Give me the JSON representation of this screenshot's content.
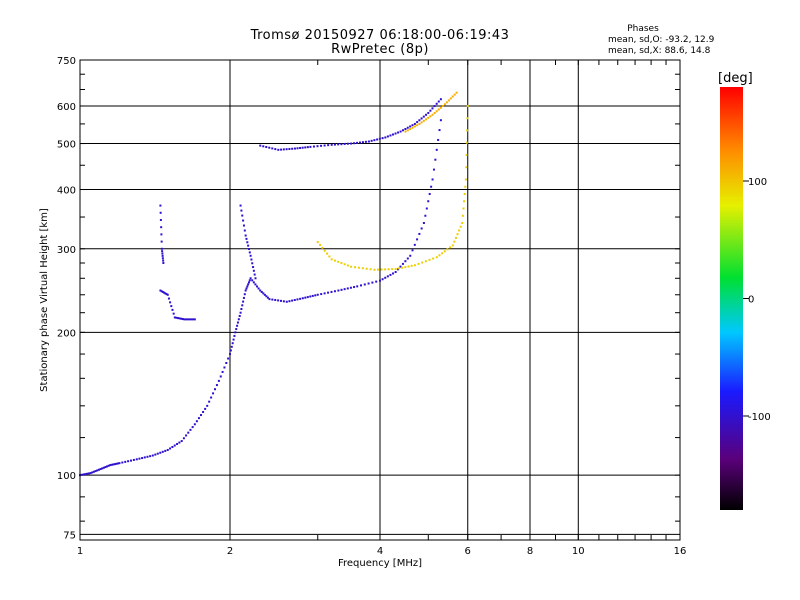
{
  "chart_data": {
    "type": "scatter",
    "title": "Tromsø 20150927 06:18:00-06:19:43",
    "subtitle": "RwPretec (8p)",
    "xlabel": "Frequency [MHz]",
    "ylabel": "Stationary phase Virtual Height [km]",
    "x_scale": "log",
    "y_scale": "log",
    "xlim": [
      1,
      16
    ],
    "ylim": [
      73,
      750
    ],
    "x_ticks": [
      1,
      2,
      4,
      6,
      8,
      10,
      16
    ],
    "y_ticks": [
      75,
      100,
      200,
      300,
      400,
      500,
      600,
      750
    ],
    "grid": true,
    "phase_box": {
      "heading": "Phases",
      "line_O": "mean, sd,O: -93.2, 12.9",
      "line_X": "mean, sd,X:  88.6, 14.8"
    },
    "colorbar": {
      "label": "[deg]",
      "range": [
        -180,
        180
      ],
      "ticks": [
        100,
        0,
        -100
      ],
      "colormap": "rainbow (black-purple-blue-cyan-green-yellow-orange-red)"
    },
    "series": [
      {
        "mode": "O",
        "phase_deg": -100,
        "x": [
          1.0,
          1.05,
          1.1,
          1.15,
          1.2,
          1.3,
          1.4,
          1.5,
          1.6,
          1.7,
          1.8,
          1.9,
          2.0,
          2.05,
          2.1,
          2.15,
          2.2,
          2.3,
          2.4,
          2.6,
          2.8,
          3.0,
          3.3,
          3.6,
          4.0,
          4.3,
          4.6,
          4.9,
          5.1,
          5.3
        ],
        "y": [
          100,
          101,
          103,
          105,
          106,
          108,
          110,
          113,
          118,
          128,
          140,
          158,
          180,
          200,
          220,
          245,
          260,
          245,
          235,
          232,
          236,
          240,
          245,
          250,
          257,
          268,
          290,
          340,
          420,
          560
        ]
      },
      {
        "mode": "F2-O",
        "phase_deg": -100,
        "x": [
          2.3,
          2.5,
          2.7,
          2.9,
          3.2,
          3.5,
          3.8,
          4.1,
          4.4,
          4.7,
          5.0,
          5.3
        ],
        "y": [
          495,
          485,
          488,
          492,
          497,
          500,
          505,
          515,
          530,
          550,
          580,
          620
        ]
      },
      {
        "mode": "X",
        "phase_deg": 95,
        "x": [
          3.0,
          3.2,
          3.5,
          3.9,
          4.3,
          4.7,
          5.2,
          5.6,
          5.85,
          5.95,
          6.0
        ],
        "y": [
          310,
          285,
          275,
          271,
          272,
          277,
          288,
          305,
          340,
          420,
          600
        ]
      },
      {
        "mode": "F2-X",
        "phase_deg": 110,
        "x": [
          4.5,
          4.8,
          5.1,
          5.4,
          5.7
        ],
        "y": [
          530,
          550,
          575,
          605,
          640
        ]
      }
    ],
    "extra_traces": [
      {
        "x": [
          1.45,
          1.5,
          1.55,
          1.62,
          1.7
        ],
        "y": [
          245,
          240,
          215,
          213,
          213
        ]
      },
      {
        "x": [
          1.45,
          1.46,
          1.47
        ],
        "y": [
          370,
          300,
          280
        ]
      },
      {
        "x": [
          2.1,
          2.15,
          2.2,
          2.25
        ],
        "y": [
          370,
          320,
          290,
          260
        ]
      }
    ]
  }
}
